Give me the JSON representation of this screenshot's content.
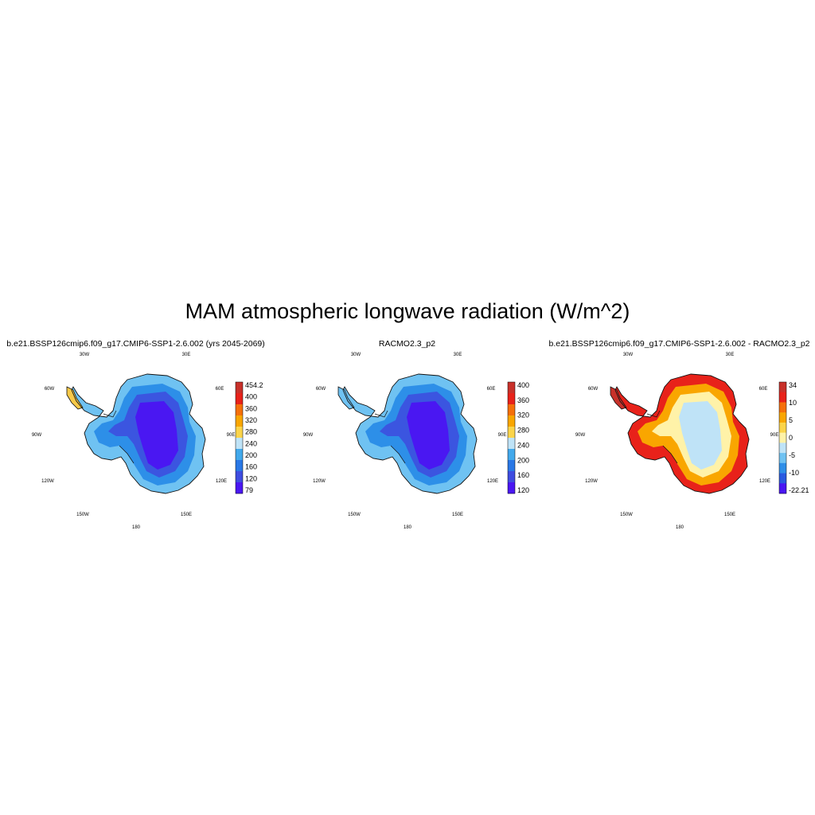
{
  "figure": {
    "title": "MAM atmospheric longwave radiation (W/m^2)"
  },
  "panels": [
    {
      "title": "b.e21.BSSP126cmip6.f09_g17.CMIP6-SSP1-2.6.002 (yrs 2045-2069)",
      "colorbar": {
        "labels": [
          "454.2",
          "400",
          "360",
          "320",
          "280",
          "240",
          "200",
          "160",
          "120",
          "79"
        ],
        "colors": [
          "#c8312a",
          "#e8221a",
          "#f5700a",
          "#f9a600",
          "#fbd44a",
          "#bfe3f7",
          "#42a9ec",
          "#2a78e6",
          "#3f4de0",
          "#4a17f2"
        ]
      },
      "map_colors": {
        "coast": "#6fc2f2",
        "mid": "#2d8fe8",
        "inner": "#3b55e0",
        "core": "#4a17f2",
        "peninsula_warm": "#f7c948"
      }
    },
    {
      "title": "RACMO2.3_p2",
      "colorbar": {
        "labels": [
          "400",
          "360",
          "320",
          "280",
          "240",
          "200",
          "160",
          "120"
        ],
        "colors": [
          "#c8312a",
          "#e8221a",
          "#f5700a",
          "#f9a600",
          "#fbd44a",
          "#bfe3f7",
          "#42a9ec",
          "#2a78e6",
          "#3f4de0",
          "#4a17f2"
        ]
      },
      "map_colors": {
        "coast": "#6fc2f2",
        "mid": "#2d8fe8",
        "inner": "#3b55e0",
        "core": "#4a17f2",
        "peninsula_warm": "#6fc2f2"
      }
    },
    {
      "title": "b.e21.BSSP126cmip6.f09_g17.CMIP6-SSP1-2.6.002 - RACMO2.3_p2",
      "colorbar": {
        "labels": [
          "34",
          "10",
          "5",
          "0",
          "-5",
          "-10",
          "-22.21"
        ],
        "colors": [
          "#c8312a",
          "#e8221a",
          "#f5700a",
          "#f9a600",
          "#fbd44a",
          "#fff2a8",
          "#bfe3f7",
          "#6fc2f2",
          "#2f8fe8",
          "#2a5ae0",
          "#4a17f2"
        ]
      },
      "map_colors": {
        "coast": "#e8221a",
        "mid": "#f9a600",
        "inner": "#fff2a8",
        "core": "#bfe3f7",
        "peninsula_warm": "#c8312a"
      }
    }
  ],
  "longitude_labels": [
    "30W",
    "30E",
    "60W",
    "60E",
    "90W",
    "90E",
    "120W",
    "120E",
    "150W",
    "150E",
    "180"
  ]
}
